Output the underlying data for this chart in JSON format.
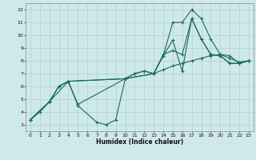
{
  "xlabel": "Humidex (Indice chaleur)",
  "bg_color": "#cfe8ec",
  "grid_color": "#afd0d4",
  "line_color": "#1a6b5a",
  "xlim": [
    -0.5,
    23.5
  ],
  "ylim": [
    2.5,
    12.5
  ],
  "xticks": [
    0,
    1,
    2,
    3,
    4,
    5,
    6,
    7,
    8,
    9,
    10,
    11,
    12,
    13,
    14,
    15,
    16,
    17,
    18,
    19,
    20,
    21,
    22,
    23
  ],
  "yticks": [
    3,
    4,
    5,
    6,
    7,
    8,
    9,
    10,
    11,
    12
  ],
  "line1_x": [
    0,
    1,
    2,
    3,
    4,
    5,
    7,
    8,
    9,
    10,
    11,
    12,
    13,
    14,
    15,
    16,
    17,
    18,
    19,
    20,
    21,
    22,
    23
  ],
  "line1_y": [
    3.4,
    4.0,
    4.8,
    6.0,
    6.4,
    4.5,
    3.2,
    3.0,
    3.4,
    6.6,
    7.0,
    7.2,
    7.0,
    8.5,
    8.8,
    8.5,
    11.3,
    9.7,
    8.5,
    8.4,
    7.8,
    7.8,
    8.0
  ],
  "line2_x": [
    0,
    2,
    3,
    4,
    5,
    10,
    11,
    12,
    13,
    14,
    15,
    16,
    17,
    18,
    19,
    20,
    21,
    22,
    23
  ],
  "line2_y": [
    3.4,
    4.8,
    6.0,
    6.4,
    4.6,
    6.6,
    7.0,
    7.2,
    7.0,
    8.4,
    11.0,
    11.0,
    12.0,
    11.3,
    9.7,
    8.5,
    8.4,
    7.8,
    8.0
  ],
  "line3_x": [
    0,
    2,
    3,
    4,
    10,
    13,
    14,
    15,
    16,
    17,
    18,
    19,
    20,
    21,
    22,
    23
  ],
  "line3_y": [
    3.4,
    4.8,
    6.0,
    6.4,
    6.6,
    7.0,
    8.4,
    9.6,
    7.2,
    11.3,
    9.7,
    8.5,
    8.4,
    7.8,
    7.8,
    8.0
  ],
  "line4_x": [
    0,
    2,
    4,
    10,
    13,
    14,
    15,
    16,
    17,
    18,
    19,
    20,
    21,
    22,
    23
  ],
  "line4_y": [
    3.4,
    4.8,
    6.4,
    6.6,
    7.0,
    7.3,
    7.6,
    7.8,
    8.0,
    8.2,
    8.4,
    8.5,
    8.2,
    7.9,
    8.0
  ]
}
